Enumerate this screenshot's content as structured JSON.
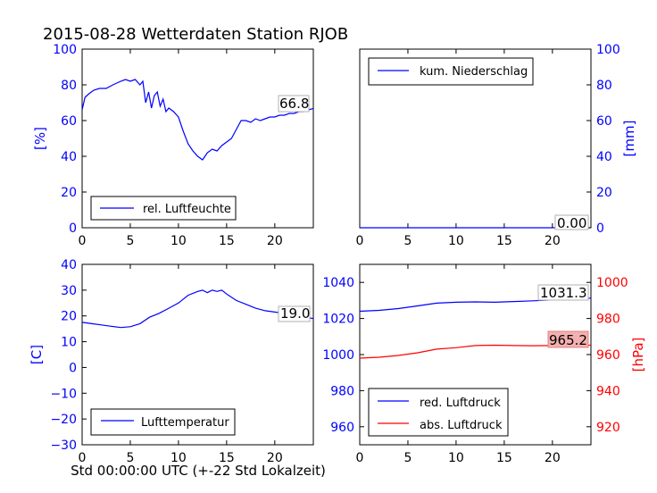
{
  "figure": {
    "title": "2015-08-28 Wetterdaten Station RJOB",
    "xlabel": "Std 00:00:00 UTC (+-22 Std Lokalzeit)"
  },
  "colors": {
    "blue": "#0000ff",
    "red": "#ff0000",
    "black": "#000000",
    "red_box": "#f4b0b0"
  },
  "chart_data": [
    {
      "type": "line",
      "name": "humidity",
      "ylabel": "[%]",
      "xlim": [
        0,
        24
      ],
      "ylim": [
        0,
        100
      ],
      "xticks": [
        "0",
        "5",
        "10",
        "15",
        "20"
      ],
      "yticks": [
        "0",
        "20",
        "40",
        "60",
        "80",
        "100"
      ],
      "legend": "rel. Luftfeuchte",
      "legend_position": "lower-left",
      "annotation": "66.8",
      "series": [
        {
          "name": "rel. Luftfeuchte",
          "color": "#0000ff",
          "points": [
            [
              0,
              66
            ],
            [
              0.3,
              73
            ],
            [
              0.7,
              75
            ],
            [
              1.2,
              77
            ],
            [
              1.8,
              78
            ],
            [
              2.5,
              78
            ],
            [
              3.2,
              80
            ],
            [
              4.0,
              82
            ],
            [
              4.5,
              83
            ],
            [
              5.0,
              82
            ],
            [
              5.5,
              83
            ],
            [
              6.0,
              80
            ],
            [
              6.3,
              82
            ],
            [
              6.6,
              70
            ],
            [
              6.9,
              76
            ],
            [
              7.2,
              67
            ],
            [
              7.5,
              74
            ],
            [
              7.8,
              76
            ],
            [
              8.1,
              68
            ],
            [
              8.4,
              72
            ],
            [
              8.7,
              65
            ],
            [
              9.0,
              67
            ],
            [
              9.5,
              65
            ],
            [
              10.0,
              62
            ],
            [
              10.5,
              54
            ],
            [
              11.0,
              47
            ],
            [
              11.5,
              43
            ],
            [
              12.0,
              40
            ],
            [
              12.5,
              38
            ],
            [
              13.0,
              42
            ],
            [
              13.5,
              44
            ],
            [
              14.0,
              43
            ],
            [
              14.5,
              46
            ],
            [
              15.0,
              48
            ],
            [
              15.5,
              50
            ],
            [
              16.0,
              55
            ],
            [
              16.5,
              60
            ],
            [
              17.0,
              60
            ],
            [
              17.5,
              59
            ],
            [
              18.0,
              61
            ],
            [
              18.5,
              60
            ],
            [
              19.0,
              61
            ],
            [
              19.5,
              62
            ],
            [
              20.0,
              62
            ],
            [
              20.5,
              63
            ],
            [
              21.0,
              63
            ],
            [
              21.5,
              64
            ],
            [
              22.0,
              64
            ],
            [
              22.5,
              65
            ],
            [
              23.0,
              65
            ],
            [
              23.5,
              66
            ],
            [
              24.0,
              66.8
            ]
          ]
        }
      ]
    },
    {
      "type": "line",
      "name": "precipitation",
      "ylabel": "[mm]",
      "xlim": [
        0,
        24
      ],
      "ylim": [
        0,
        100
      ],
      "xticks": [
        "0",
        "5",
        "10",
        "15",
        "20"
      ],
      "yticks": [
        "0",
        "20",
        "40",
        "60",
        "80",
        "100"
      ],
      "legend": "kum. Niederschlag",
      "legend_position": "upper-left",
      "annotation": "0.00",
      "series": [
        {
          "name": "kum. Niederschlag",
          "color": "#0000ff",
          "points": [
            [
              0,
              0
            ],
            [
              24,
              0
            ]
          ]
        }
      ]
    },
    {
      "type": "line",
      "name": "temperature",
      "ylabel": "[C]",
      "xlim": [
        0,
        24
      ],
      "ylim": [
        -30,
        40
      ],
      "xticks": [
        "0",
        "5",
        "10",
        "15",
        "20"
      ],
      "yticks": [
        "−30",
        "−20",
        "−10",
        "0",
        "10",
        "20",
        "30",
        "40"
      ],
      "legend": "Lufttemperatur",
      "legend_position": "lower-left",
      "annotation": "19.0",
      "series": [
        {
          "name": "Lufttemperatur",
          "color": "#0000ff",
          "points": [
            [
              0,
              17.5
            ],
            [
              1,
              17
            ],
            [
              2,
              16.5
            ],
            [
              3,
              16
            ],
            [
              4,
              15.5
            ],
            [
              5,
              15.8
            ],
            [
              6,
              17
            ],
            [
              7,
              19.5
            ],
            [
              8,
              21
            ],
            [
              9,
              23
            ],
            [
              10,
              25
            ],
            [
              11,
              28
            ],
            [
              12,
              29.5
            ],
            [
              12.5,
              30
            ],
            [
              13,
              29
            ],
            [
              13.5,
              30
            ],
            [
              14,
              29.5
            ],
            [
              14.5,
              30
            ],
            [
              15,
              28.5
            ],
            [
              16,
              26
            ],
            [
              17,
              24.5
            ],
            [
              18,
              23
            ],
            [
              19,
              22
            ],
            [
              20,
              21.5
            ],
            [
              21,
              21
            ],
            [
              22,
              20.5
            ],
            [
              23,
              19.5
            ],
            [
              24,
              19.0
            ]
          ]
        }
      ]
    },
    {
      "type": "line",
      "name": "pressure",
      "ylabel_left": "",
      "ylabel_right": "[hPa]",
      "xlim": [
        0,
        24
      ],
      "ylim_left": [
        950,
        1050
      ],
      "ylim_right": [
        910,
        1010
      ],
      "xticks": [
        "0",
        "5",
        "10",
        "15",
        "20"
      ],
      "yticks_left": [
        "960",
        "980",
        "1000",
        "1020",
        "1040"
      ],
      "yticks_right": [
        "920",
        "940",
        "960",
        "980",
        "1000"
      ],
      "legend": [
        "red. Luftdruck",
        "abs. Luftdruck"
      ],
      "legend_position": "lower-left",
      "annotation_red": "1031.3",
      "annotation_abs": "965.2",
      "series": [
        {
          "name": "red. Luftdruck",
          "color": "#0000ff",
          "axis": "left",
          "points": [
            [
              0,
              1024
            ],
            [
              2,
              1024.5
            ],
            [
              4,
              1025.5
            ],
            [
              6,
              1027
            ],
            [
              8,
              1028.5
            ],
            [
              10,
              1029
            ],
            [
              12,
              1029.2
            ],
            [
              14,
              1029
            ],
            [
              16,
              1029.4
            ],
            [
              18,
              1029.8
            ],
            [
              20,
              1030.3
            ],
            [
              22,
              1030.8
            ],
            [
              24,
              1031.3
            ]
          ]
        },
        {
          "name": "abs. Luftdruck",
          "color": "#ff0000",
          "axis": "right",
          "points": [
            [
              0,
              958
            ],
            [
              2,
              958.5
            ],
            [
              4,
              959.5
            ],
            [
              6,
              961
            ],
            [
              8,
              963
            ],
            [
              10,
              963.8
            ],
            [
              12,
              965
            ],
            [
              14,
              965.2
            ],
            [
              16,
              965
            ],
            [
              18,
              964.9
            ],
            [
              20,
              965
            ],
            [
              22,
              965.1
            ],
            [
              24,
              965.2
            ]
          ]
        }
      ]
    }
  ]
}
